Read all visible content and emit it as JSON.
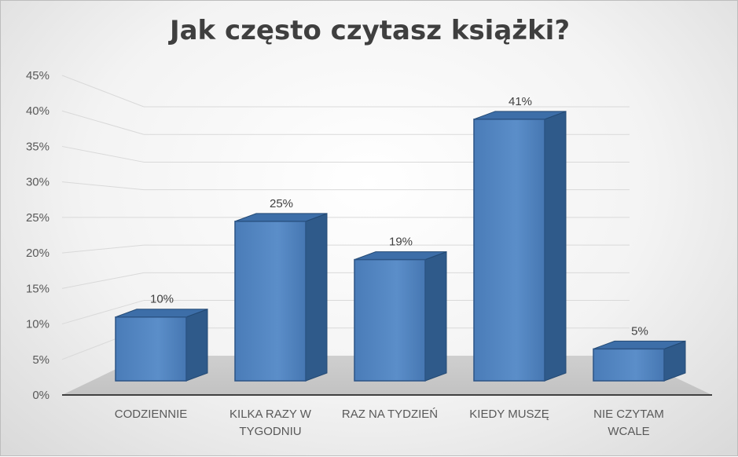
{
  "chart_data": {
    "type": "bar",
    "title": "Jak często czytasz książki?",
    "categories": [
      [
        "CODZIENNIE"
      ],
      [
        "KILKA RAZY W",
        "TYGODNIU"
      ],
      [
        "RAZ NA TYDZIEŃ"
      ],
      [
        "KIEDY MUSZĘ"
      ],
      [
        "NIE CZYTAM",
        "WCALE"
      ]
    ],
    "values": [
      10,
      25,
      19,
      41,
      5
    ],
    "data_labels": [
      "10%",
      "25%",
      "19%",
      "41%",
      "5%"
    ],
    "y_ticks": [
      "0%",
      "5%",
      "10%",
      "15%",
      "20%",
      "25%",
      "30%",
      "35%",
      "40%",
      "45%"
    ],
    "ylim": [
      0,
      45
    ],
    "grid": true,
    "legend": "none",
    "bar_color": "#4f81bd",
    "style": "3d-column"
  }
}
